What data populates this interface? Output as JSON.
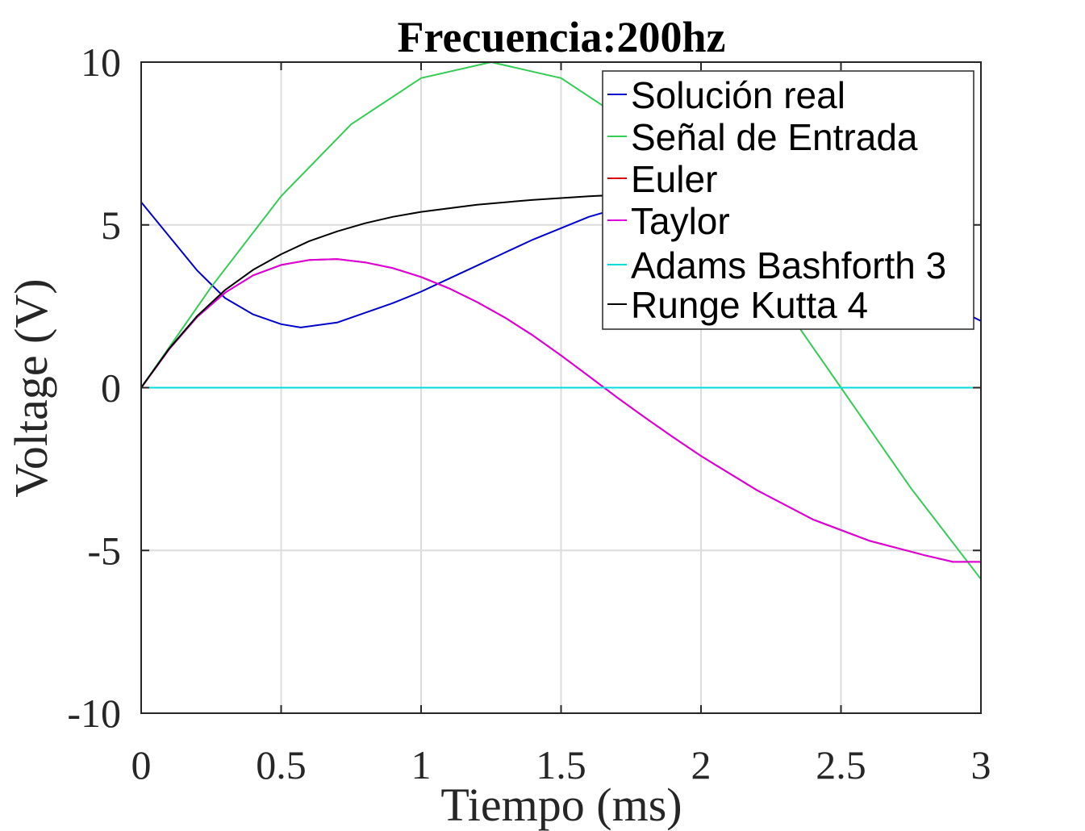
{
  "chart_data": {
    "type": "line",
    "title": "Frecuencia:200hz",
    "xlabel": "Tiempo (ms)",
    "ylabel": "Voltage (V)",
    "xlim": [
      0,
      3
    ],
    "ylim": [
      -10,
      10
    ],
    "xticks": [
      0,
      0.5,
      1,
      1.5,
      2,
      2.5,
      3
    ],
    "xtick_labels": [
      "0",
      "0.5",
      "1",
      "1.5",
      "2",
      "2.5",
      "3"
    ],
    "yticks": [
      -10,
      -5,
      0,
      5,
      10
    ],
    "ytick_labels": [
      "-10",
      "-5",
      "0",
      "5",
      "10"
    ],
    "grid": true,
    "legend_position": "top-right",
    "series": [
      {
        "name": "Solución real",
        "color": "#0000cc",
        "x": [
          0,
          0.1,
          0.2,
          0.3,
          0.4,
          0.5,
          0.57,
          0.7,
          0.8,
          0.9,
          1.0,
          1.1,
          1.2,
          1.3,
          1.4,
          1.5,
          1.6,
          1.7,
          1.8,
          2.0,
          2.2,
          2.4,
          2.6,
          2.8,
          3.0
        ],
        "y": [
          5.7,
          4.65,
          3.6,
          2.75,
          2.25,
          1.95,
          1.85,
          2.0,
          2.3,
          2.6,
          2.95,
          3.35,
          3.75,
          4.15,
          4.55,
          4.9,
          5.25,
          5.5,
          5.7,
          5.85,
          5.55,
          4.8,
          3.9,
          2.9,
          2.05
        ]
      },
      {
        "name": "Señal de Entrada",
        "color": "#33cc55",
        "x": [
          0,
          0.25,
          0.5,
          0.75,
          1.0,
          1.25,
          1.5,
          1.75,
          2.0,
          2.25,
          2.5,
          2.75,
          3.0
        ],
        "y": [
          0,
          3.09,
          5.88,
          8.09,
          9.51,
          10,
          9.51,
          8.09,
          5.88,
          3.09,
          0,
          -3.09,
          -5.88
        ]
      },
      {
        "name": "Euler",
        "color": "#dd0000",
        "x": [
          0,
          0.1,
          0.2,
          0.3,
          0.4,
          0.5,
          0.6,
          0.7,
          0.8,
          0.9,
          1.0,
          1.1,
          1.2,
          1.3,
          1.4,
          1.5,
          1.6,
          1.7,
          1.8,
          1.9,
          2.0,
          2.2,
          2.4,
          2.6,
          2.8,
          2.9,
          3.0
        ],
        "y": [
          0,
          1.18,
          2.17,
          2.92,
          3.45,
          3.77,
          3.92,
          3.95,
          3.85,
          3.67,
          3.4,
          3.05,
          2.63,
          2.15,
          1.6,
          0.99,
          0.35,
          -0.3,
          -0.92,
          -1.52,
          -2.1,
          -3.15,
          -4.05,
          -4.7,
          -5.15,
          -5.35,
          -5.35
        ]
      },
      {
        "name": "Taylor",
        "color": "#dd00dd",
        "x": [
          0,
          0.1,
          0.2,
          0.3,
          0.4,
          0.5,
          0.6,
          0.7,
          0.8,
          0.9,
          1.0,
          1.1,
          1.2,
          1.3,
          1.4,
          1.5,
          1.6,
          1.7,
          1.8,
          1.9,
          2.0,
          2.2,
          2.4,
          2.6,
          2.8,
          2.9,
          3.0
        ],
        "y": [
          0,
          1.18,
          2.17,
          2.92,
          3.45,
          3.77,
          3.92,
          3.95,
          3.85,
          3.67,
          3.4,
          3.05,
          2.63,
          2.15,
          1.6,
          0.99,
          0.35,
          -0.3,
          -0.92,
          -1.52,
          -2.1,
          -3.15,
          -4.05,
          -4.7,
          -5.15,
          -5.35,
          -5.35
        ]
      },
      {
        "name": "Adams Bashforth 3",
        "color": "#00dddd",
        "x": [
          0,
          3
        ],
        "y": [
          0,
          0
        ]
      },
      {
        "name": "Runge Kutta 4",
        "color": "#000000",
        "x": [
          0,
          0.1,
          0.2,
          0.3,
          0.4,
          0.5,
          0.6,
          0.7,
          0.8,
          0.9,
          1.0,
          1.2,
          1.4,
          1.6,
          1.8,
          1.9
        ],
        "y": [
          0,
          1.2,
          2.2,
          3.0,
          3.62,
          4.1,
          4.5,
          4.8,
          5.05,
          5.25,
          5.4,
          5.62,
          5.77,
          5.88,
          5.96,
          5.99
        ]
      }
    ]
  }
}
